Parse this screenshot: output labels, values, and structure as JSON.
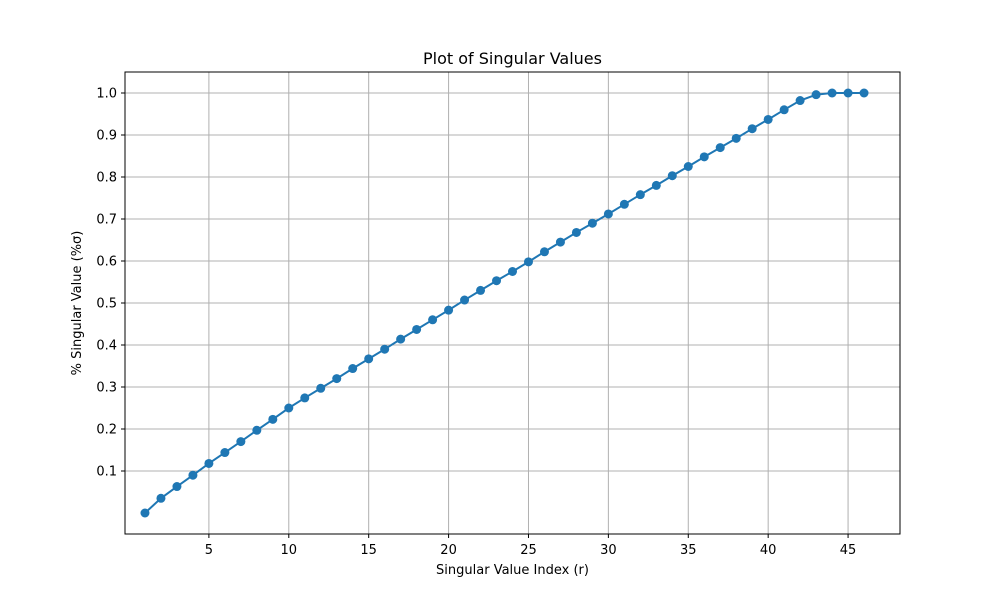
{
  "chart_data": {
    "type": "line",
    "title": "Plot of Singular Values",
    "xlabel": "Singular Value Index (r)",
    "ylabel": "% Singular Value (%σ)",
    "xlim": [
      -0.25,
      48.25
    ],
    "ylim": [
      -0.05,
      1.05
    ],
    "x_ticks": [
      5,
      10,
      15,
      20,
      25,
      30,
      35,
      40,
      45
    ],
    "y_ticks": [
      0.1,
      0.2,
      0.3,
      0.4,
      0.5,
      0.6,
      0.7,
      0.8,
      0.9,
      1.0
    ],
    "y_tick_labels": [
      "0.1",
      "0.2",
      "0.3",
      "0.4",
      "0.5",
      "0.6",
      "0.7",
      "0.8",
      "0.9",
      "1.0"
    ],
    "grid": true,
    "marker": "circle",
    "colors": {
      "series": "#1f77b4",
      "grid": "#b0b0b0",
      "axes": "#000000"
    },
    "series": [
      {
        "x": [
          1,
          2,
          3,
          4,
          5,
          6,
          7,
          8,
          9,
          10,
          11,
          12,
          13,
          14,
          15,
          16,
          17,
          18,
          19,
          20,
          21,
          22,
          23,
          24,
          25,
          26,
          27,
          28,
          29,
          30,
          31,
          32,
          33,
          34,
          35,
          36,
          37,
          38,
          39,
          40,
          41,
          42,
          43,
          44,
          45,
          46
        ],
        "values": [
          0.0,
          0.035,
          0.063,
          0.09,
          0.118,
          0.144,
          0.17,
          0.197,
          0.223,
          0.25,
          0.274,
          0.297,
          0.32,
          0.344,
          0.367,
          0.39,
          0.414,
          0.437,
          0.46,
          0.483,
          0.507,
          0.53,
          0.553,
          0.575,
          0.598,
          0.622,
          0.645,
          0.668,
          0.69,
          0.712,
          0.735,
          0.758,
          0.78,
          0.803,
          0.825,
          0.848,
          0.87,
          0.892,
          0.915,
          0.937,
          0.96,
          0.982,
          0.996,
          1.0,
          1.0,
          1.0
        ]
      }
    ]
  }
}
